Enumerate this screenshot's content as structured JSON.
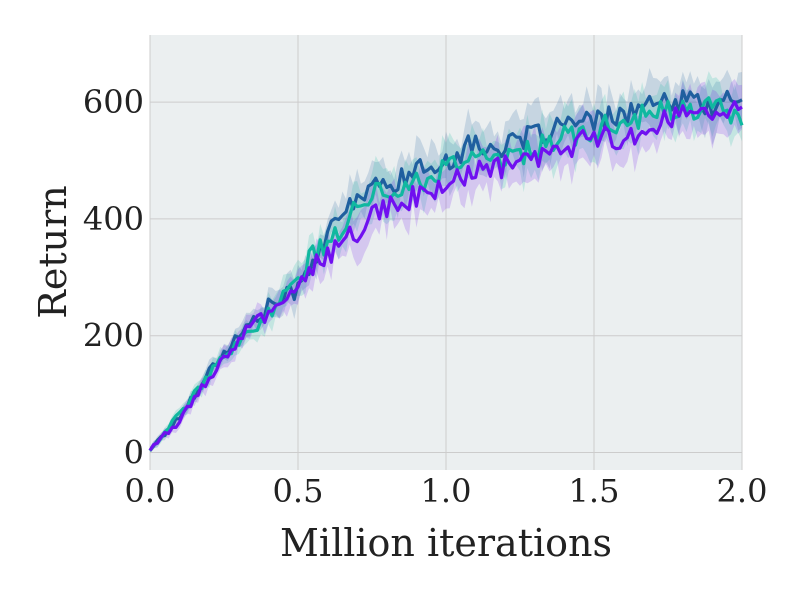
{
  "chart_data": {
    "type": "line",
    "title": "",
    "xlabel": "Million iterations",
    "ylabel": "Return",
    "xlim": [
      0.0,
      2.0
    ],
    "ylim": [
      -30,
      715
    ],
    "xticks": [
      0.0,
      0.5,
      1.0,
      1.5,
      2.0
    ],
    "xtick_labels": [
      "0.0",
      "0.5",
      "1.0",
      "1.5",
      "2.0"
    ],
    "yticks": [
      0,
      200,
      400,
      600
    ],
    "ytick_labels": [
      "0",
      "200",
      "400",
      "600"
    ],
    "grid": true,
    "legend": "none",
    "colors": {
      "background": "#ebeff0",
      "grid": "#cccccc",
      "text": "#222222"
    },
    "series": [
      {
        "color": "#1f5f9f",
        "x": [
          0.0,
          0.1,
          0.2,
          0.3,
          0.4,
          0.5,
          0.55,
          0.6,
          0.7,
          0.8,
          0.9,
          1.0,
          1.1,
          1.2,
          1.3,
          1.4,
          1.5,
          1.6,
          1.7,
          1.8,
          1.9,
          2.0
        ],
        "values": [
          5,
          60,
          140,
          200,
          250,
          280,
          330,
          370,
          440,
          460,
          480,
          500,
          530,
          520,
          545,
          560,
          565,
          580,
          595,
          600,
          595,
          605
        ]
      },
      {
        "color": "#10b8a0",
        "x": [
          0.0,
          0.1,
          0.2,
          0.3,
          0.4,
          0.5,
          0.55,
          0.6,
          0.7,
          0.8,
          0.9,
          1.0,
          1.1,
          1.2,
          1.3,
          1.4,
          1.5,
          1.6,
          1.7,
          1.8,
          1.9,
          2.0
        ],
        "values": [
          5,
          65,
          135,
          185,
          240,
          290,
          345,
          350,
          430,
          450,
          460,
          490,
          505,
          505,
          520,
          540,
          550,
          570,
          580,
          585,
          590,
          575
        ]
      },
      {
        "color": "#7010f0",
        "x": [
          0.0,
          0.1,
          0.2,
          0.3,
          0.4,
          0.5,
          0.55,
          0.6,
          0.7,
          0.8,
          0.9,
          1.0,
          1.1,
          1.2,
          1.3,
          1.4,
          1.5,
          1.6,
          1.7,
          1.8,
          1.9,
          2.0
        ],
        "values": [
          5,
          55,
          130,
          195,
          240,
          275,
          320,
          335,
          380,
          420,
          440,
          455,
          480,
          490,
          500,
          520,
          540,
          540,
          560,
          580,
          590,
          580
        ]
      }
    ]
  }
}
